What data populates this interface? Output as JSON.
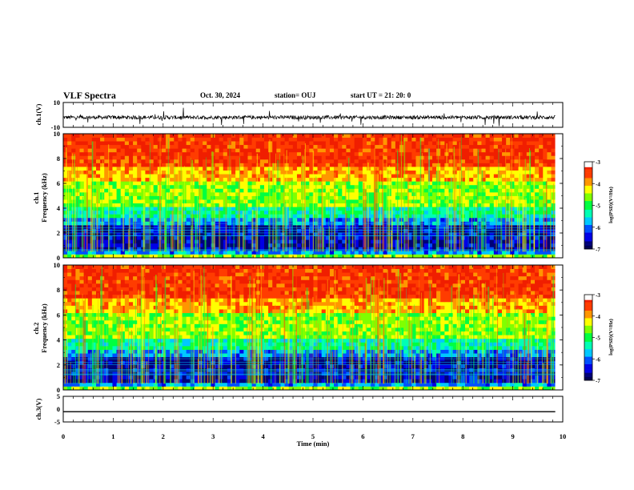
{
  "header": {
    "title": "VLF Spectra",
    "date": "Oct. 30, 2024",
    "station": "station= OUJ",
    "start": "start  UT  =   21: 20: 0"
  },
  "chart_data": {
    "type": "heatmap",
    "xlabel": "Time  (min)",
    "xlim": [
      0,
      10
    ],
    "x_ticks": [
      "0",
      "1",
      "2",
      "3",
      "4",
      "5",
      "6",
      "7",
      "8",
      "9",
      "10"
    ],
    "panels": [
      {
        "id": "ch1-waveform",
        "type": "line",
        "ylabel": "ch.1(V)",
        "ylim": [
          -10,
          10
        ],
        "y_ticks": [
          "10",
          "-10"
        ]
      },
      {
        "id": "ch1-spectrogram",
        "type": "heatmap",
        "ylabel_1": "ch.1",
        "ylabel_2": "Frequency  (kHz)",
        "ylim": [
          0,
          10
        ],
        "y_ticks": [
          "0",
          "2",
          "4",
          "6",
          "8",
          "10"
        ],
        "colorbar": {
          "label": "log(PSD)(V²/Hz)",
          "range": [
            -7,
            -3
          ],
          "ticks": [
            "-3",
            "-4",
            "-5",
            "-6",
            "-7"
          ]
        }
      },
      {
        "id": "ch2-spectrogram",
        "type": "heatmap",
        "ylabel_1": "ch.2",
        "ylabel_2": "Frequency  (kHz)",
        "ylim": [
          0,
          10
        ],
        "y_ticks": [
          "0",
          "2",
          "4",
          "6",
          "8",
          "10"
        ],
        "colorbar": {
          "label": "log(PSD)(V²/Hz)",
          "range": [
            -7,
            -3
          ],
          "ticks": [
            "-3",
            "-4",
            "-5",
            "-6",
            "-7"
          ]
        }
      },
      {
        "id": "ch3-waveform",
        "type": "line",
        "ylabel": "ch.3(V)",
        "ylim": [
          -5,
          5
        ],
        "y_ticks": [
          "5",
          "0",
          "-5"
        ],
        "constant_level": -1
      }
    ]
  },
  "colors": {
    "scale": [
      "#000078",
      "#0000e6",
      "#0050ff",
      "#00c8ff",
      "#00ffb4",
      "#00ff40",
      "#80ff00",
      "#ffff00",
      "#ff9600",
      "#ff3c00",
      "#f01e00",
      "#ffffff"
    ]
  }
}
